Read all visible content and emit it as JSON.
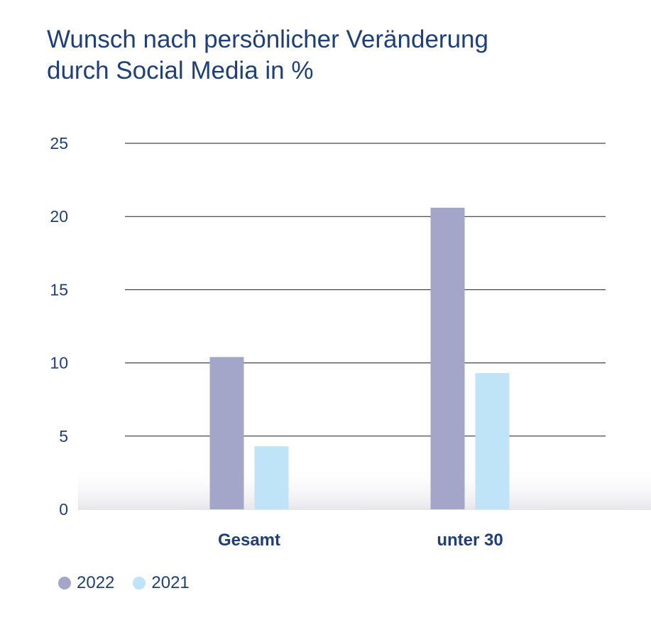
{
  "title_line1": "Wunsch nach persönlicher Veränderung",
  "title_line2": "durch Social Media in %",
  "chart_data": {
    "type": "bar",
    "title": "Wunsch nach persönlicher Veränderung durch Social Media in %",
    "categories": [
      "Gesamt",
      "unter 30"
    ],
    "series": [
      {
        "name": "2022",
        "values": [
          10.4,
          20.6
        ],
        "color": "#a3a6c8"
      },
      {
        "name": "2021",
        "values": [
          4.3,
          9.3
        ],
        "color": "#bfe3f7"
      }
    ],
    "yticks": [
      0,
      5,
      10,
      15,
      20,
      25
    ],
    "ylim": [
      0,
      25
    ],
    "xlabel": "",
    "ylabel": "",
    "grid": true,
    "legend": "bottom-left"
  },
  "colors": {
    "text": "#1f3f7a",
    "grid": "#1a1a1a"
  }
}
